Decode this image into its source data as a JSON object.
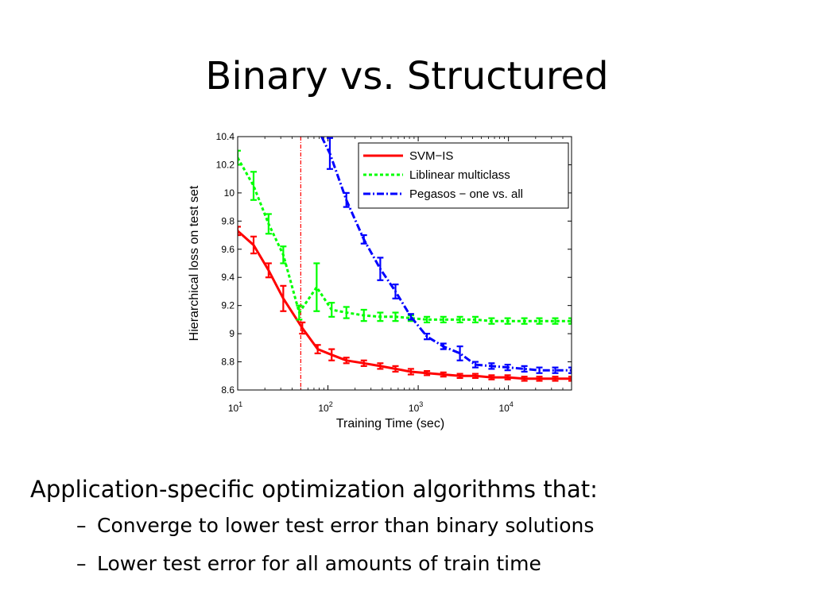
{
  "slide": {
    "title": "Binary vs. Structured",
    "bullets": {
      "main": "Application-specific optimization algorithms that:",
      "sub": [
        "Converge to lower test error than binary solutions",
        "Lower test error for all amounts of train time"
      ],
      "sub_marker": "–"
    }
  },
  "chart_data": {
    "type": "line",
    "title": "",
    "xlabel": "Training Time (sec)",
    "ylabel": "Hierarchical loss on test set",
    "xscale": "log",
    "xlim": [
      10,
      50000
    ],
    "ylim": [
      8.6,
      10.4
    ],
    "x_tick_values": [
      10,
      100,
      1000,
      10000
    ],
    "x_tick_labels": [
      {
        "base": "10",
        "exp": "1"
      },
      {
        "base": "10",
        "exp": "2"
      },
      {
        "base": "10",
        "exp": "3"
      },
      {
        "base": "10",
        "exp": "4"
      }
    ],
    "y_tick_values": [
      8.6,
      8.8,
      9.0,
      9.2,
      9.4,
      9.6,
      9.8,
      10.0,
      10.2,
      10.4
    ],
    "y_tick_labels": [
      "8.6",
      "8.8",
      "9",
      "9.2",
      "9.4",
      "9.6",
      "9.8",
      "10",
      "10.2",
      "10.4"
    ],
    "grid": false,
    "legend_position": "top-right",
    "vline": {
      "x": 50,
      "color": "#ff0000"
    },
    "series": [
      {
        "name": "SVM−IS",
        "color": "#ff0000",
        "dash": "solid",
        "points": [
          {
            "x": 10,
            "y": 9.73,
            "err": 0.03
          },
          {
            "x": 15,
            "y": 9.63,
            "err": 0.06
          },
          {
            "x": 22,
            "y": 9.45,
            "err": 0.05
          },
          {
            "x": 32,
            "y": 9.25,
            "err": 0.09
          },
          {
            "x": 52,
            "y": 9.04,
            "err": 0.04
          },
          {
            "x": 77,
            "y": 8.89,
            "err": 0.03
          },
          {
            "x": 110,
            "y": 8.85,
            "err": 0.04
          },
          {
            "x": 160,
            "y": 8.81,
            "err": 0.02
          },
          {
            "x": 250,
            "y": 8.79,
            "err": 0.02
          },
          {
            "x": 380,
            "y": 8.77,
            "err": 0.02
          },
          {
            "x": 560,
            "y": 8.75,
            "err": 0.02
          },
          {
            "x": 830,
            "y": 8.73,
            "err": 0.02
          },
          {
            "x": 1250,
            "y": 8.72,
            "err": 0.015
          },
          {
            "x": 1900,
            "y": 8.71,
            "err": 0.015
          },
          {
            "x": 2900,
            "y": 8.7,
            "err": 0.015
          },
          {
            "x": 4300,
            "y": 8.7,
            "err": 0.015
          },
          {
            "x": 6500,
            "y": 8.69,
            "err": 0.015
          },
          {
            "x": 9800,
            "y": 8.69,
            "err": 0.015
          },
          {
            "x": 15000,
            "y": 8.68,
            "err": 0.015
          },
          {
            "x": 22000,
            "y": 8.68,
            "err": 0.015
          },
          {
            "x": 33000,
            "y": 8.68,
            "err": 0.015
          },
          {
            "x": 50000,
            "y": 8.68,
            "err": 0.015
          }
        ]
      },
      {
        "name": "Liblinear multiclass",
        "color": "#00ff00",
        "dash": "dashed",
        "points": [
          {
            "x": 10,
            "y": 10.25,
            "err": 0.05
          },
          {
            "x": 15,
            "y": 10.05,
            "err": 0.1
          },
          {
            "x": 22,
            "y": 9.78,
            "err": 0.07
          },
          {
            "x": 32,
            "y": 9.56,
            "err": 0.06
          },
          {
            "x": 48,
            "y": 9.15,
            "err": 0.05
          },
          {
            "x": 75,
            "y": 9.33,
            "err": 0.17
          },
          {
            "x": 110,
            "y": 9.17,
            "err": 0.05
          },
          {
            "x": 160,
            "y": 9.15,
            "err": 0.04
          },
          {
            "x": 250,
            "y": 9.13,
            "err": 0.04
          },
          {
            "x": 380,
            "y": 9.12,
            "err": 0.03
          },
          {
            "x": 560,
            "y": 9.12,
            "err": 0.03
          },
          {
            "x": 830,
            "y": 9.11,
            "err": 0.02
          },
          {
            "x": 1250,
            "y": 9.1,
            "err": 0.02
          },
          {
            "x": 1900,
            "y": 9.1,
            "err": 0.02
          },
          {
            "x": 2900,
            "y": 9.1,
            "err": 0.02
          },
          {
            "x": 4300,
            "y": 9.1,
            "err": 0.02
          },
          {
            "x": 6500,
            "y": 9.09,
            "err": 0.02
          },
          {
            "x": 9800,
            "y": 9.09,
            "err": 0.02
          },
          {
            "x": 15000,
            "y": 9.09,
            "err": 0.02
          },
          {
            "x": 22000,
            "y": 9.09,
            "err": 0.02
          },
          {
            "x": 33000,
            "y": 9.09,
            "err": 0.02
          },
          {
            "x": 50000,
            "y": 9.09,
            "err": 0.02
          }
        ]
      },
      {
        "name": "Pegasos − one vs. all",
        "color": "#0000ff",
        "dash": "dashdot",
        "points": [
          {
            "x": 85,
            "y": 10.4,
            "err": 0
          },
          {
            "x": 105,
            "y": 10.28,
            "err": 0.11
          },
          {
            "x": 160,
            "y": 9.95,
            "err": 0.05
          },
          {
            "x": 250,
            "y": 9.67,
            "err": 0.03
          },
          {
            "x": 380,
            "y": 9.46,
            "err": 0.08
          },
          {
            "x": 560,
            "y": 9.3,
            "err": 0.05
          },
          {
            "x": 830,
            "y": 9.12,
            "err": 0.02
          },
          {
            "x": 1250,
            "y": 8.98,
            "err": 0.02
          },
          {
            "x": 1900,
            "y": 8.91,
            "err": 0.02
          },
          {
            "x": 2900,
            "y": 8.86,
            "err": 0.05
          },
          {
            "x": 4300,
            "y": 8.78,
            "err": 0.02
          },
          {
            "x": 6500,
            "y": 8.77,
            "err": 0.02
          },
          {
            "x": 9800,
            "y": 8.76,
            "err": 0.02
          },
          {
            "x": 15000,
            "y": 8.75,
            "err": 0.02
          },
          {
            "x": 22000,
            "y": 8.74,
            "err": 0.02
          },
          {
            "x": 33000,
            "y": 8.74,
            "err": 0.02
          },
          {
            "x": 50000,
            "y": 8.74,
            "err": 0.02
          }
        ]
      }
    ]
  }
}
